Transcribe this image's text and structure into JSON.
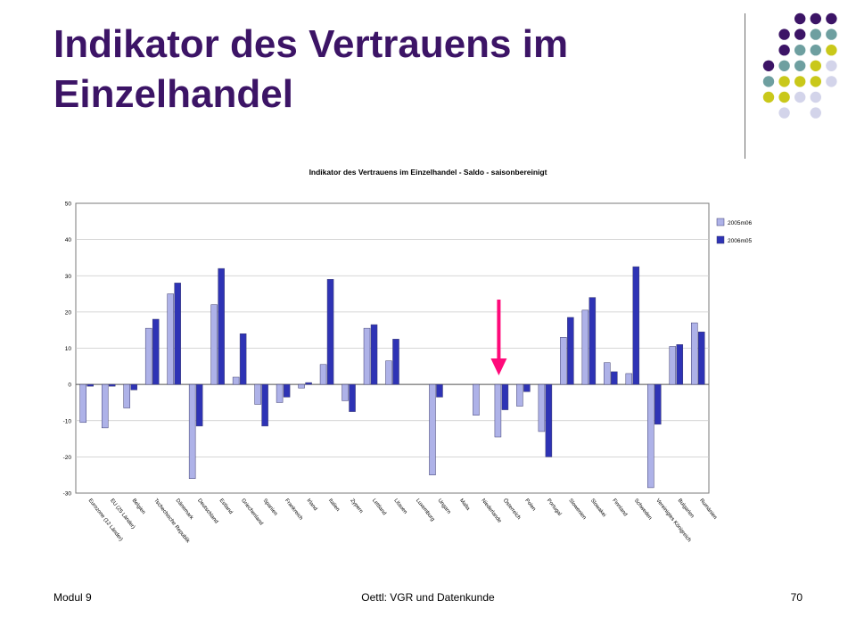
{
  "slide": {
    "title": "Indikator des Vertrauens im Einzelhandel",
    "footer_left": "Modul 9",
    "footer_center": "Oettl: VGR und Datenkunde",
    "page_number": "70"
  },
  "colors": {
    "title": "#3c1466",
    "series_2005": "#aeb2e8",
    "series_2006": "#2e33b5",
    "arrow": "#ff0a7a",
    "dot_purple": "#3c1466",
    "dot_teal": "#6e9fa0",
    "dot_yellow": "#c9c81a",
    "dot_lavender": "#d3d4ea"
  },
  "decoration": {
    "icon": "dot-grid-icon",
    "dot_grid": [
      [
        null,
        null,
        "purple",
        "purple",
        "purple"
      ],
      [
        null,
        "purple",
        "purple",
        "teal",
        "teal"
      ],
      [
        null,
        "purple",
        "teal",
        "teal",
        "yellow"
      ],
      [
        "purple",
        "teal",
        "teal",
        "yellow",
        "lavender"
      ],
      [
        "teal",
        "yellow",
        "yellow",
        "yellow",
        "lavender"
      ],
      [
        "yellow",
        "yellow",
        "lavender",
        "lavender",
        null
      ],
      [
        null,
        "lavender",
        null,
        "lavender",
        null
      ]
    ]
  },
  "chart_data": {
    "type": "bar",
    "title": "Indikator des Vertrauens im Einzelhandel - Saldo - saisonbereinigt",
    "xlabel": "",
    "ylabel": "",
    "ylim": [
      -30,
      50
    ],
    "yticks": [
      -30,
      -20,
      -10,
      0,
      10,
      20,
      30,
      40,
      50
    ],
    "grid": true,
    "legend_position": "right",
    "highlight_category": "Österreich",
    "categories": [
      "Eurozone (12 Länder)",
      "EU (25 Länder)",
      "Belgien",
      "Tschechische Republik",
      "Dänemark",
      "Deutschland",
      "Estland",
      "Griechenland",
      "Spanien",
      "Frankreich",
      "Irland",
      "Italien",
      "Zypern",
      "Lettland",
      "Litauen",
      "Luxemburg",
      "Ungarn",
      "Malta",
      "Niederlande",
      "Österreich",
      "Polen",
      "Portugal",
      "Slowenien",
      "Slowakei",
      "Finnland",
      "Schweden",
      "Vereinigtes Königreich",
      "Bulgarien",
      "Rumänien"
    ],
    "series": [
      {
        "name": "2005m06",
        "values": [
          -10.5,
          -12,
          -6.5,
          15.5,
          25,
          -26,
          22,
          2,
          -5.5,
          -5,
          -1,
          5.5,
          -4.5,
          15.5,
          6.5,
          0,
          -25,
          0,
          -8.5,
          -14.5,
          -6,
          -13,
          13,
          20.5,
          6,
          3,
          -28.5,
          10.5,
          17
        ]
      },
      {
        "name": "2006m05",
        "values": [
          -0.5,
          -0.5,
          -1.5,
          18,
          28,
          -11.5,
          32,
          14,
          -11.5,
          -3.5,
          0.5,
          29,
          -7.5,
          16.5,
          12.5,
          0,
          -3.5,
          0,
          0,
          -7,
          -2,
          -20,
          18.5,
          24,
          3.5,
          32.5,
          -11,
          11,
          14.5
        ]
      }
    ]
  }
}
